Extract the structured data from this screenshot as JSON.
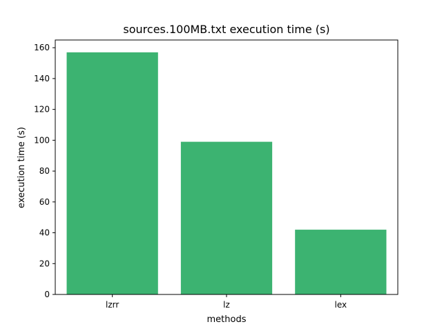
{
  "chart_data": {
    "type": "bar",
    "title": "sources.100MB.txt execution time (s)",
    "xlabel": "methods",
    "ylabel": "execution time (s)",
    "categories": [
      "lzrr",
      "lz",
      "lex"
    ],
    "values": [
      157,
      99,
      42
    ],
    "ylim": [
      0,
      165
    ],
    "yticks": [
      0,
      20,
      40,
      60,
      80,
      100,
      120,
      140,
      160
    ],
    "grid": false,
    "bar_color": "#3cb371"
  }
}
